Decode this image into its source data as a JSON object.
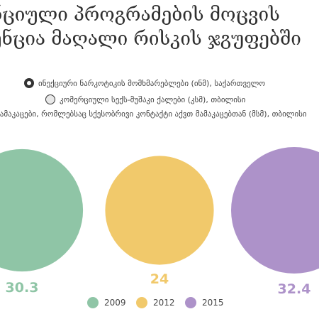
{
  "title": {
    "line1": "ნციული პროგრამების მოცვის",
    "line2": "ენცია მაღალი რისკის ჯგუფებში"
  },
  "selector": {
    "options": [
      {
        "label": "ინექციური ნარკოტიკის მომხმარებლები (ინმ), საქართველო",
        "selected": true
      },
      {
        "label": "კომერციული სექს-მუშაკი ქალები (კსმ), თბილისი",
        "selected": false
      },
      {
        "label": "მამაკაცები, რომლებსაც სქესობრივი კონტაქტი აქვთ მამაკაცებთან (მსმ), თბილისი",
        "selected": false
      }
    ]
  },
  "chart_data": {
    "type": "bubble",
    "categories": [
      "2009",
      "2012",
      "2015"
    ],
    "values": [
      30.3,
      24,
      32.4
    ],
    "value_labels": [
      "30.3",
      "24",
      "32.4"
    ],
    "colors": [
      "#8fc5a6",
      "#f1c96b",
      "#ad92c9"
    ],
    "legend": {
      "position": "bottom",
      "entries": [
        "2009",
        "2012",
        "2015"
      ]
    }
  }
}
